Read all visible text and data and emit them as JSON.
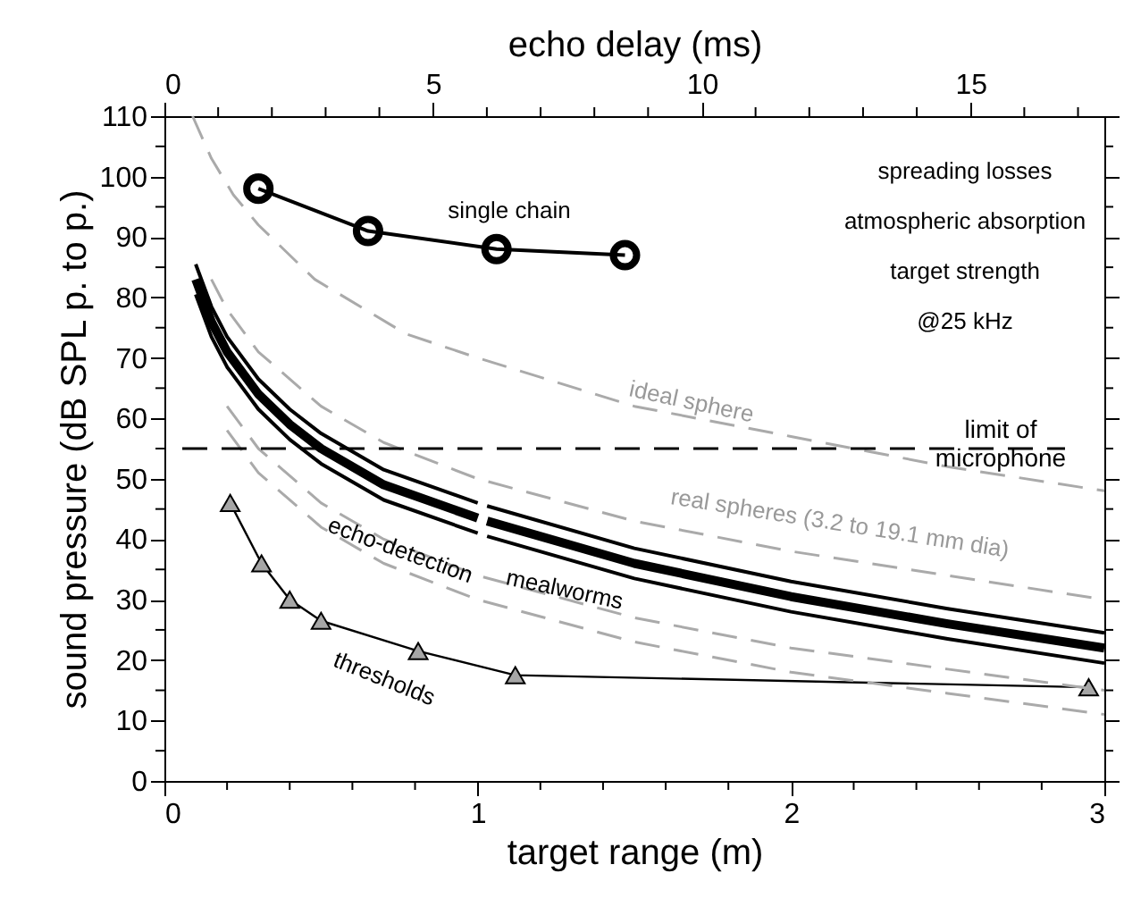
{
  "chart_data": {
    "type": "line",
    "xlabel": "target range (m)",
    "ylabel": "sound pressure (dB SPL p. to p.)",
    "x2label": "echo delay (ms)",
    "xlim": [
      0,
      3
    ],
    "ylim": [
      0,
      110
    ],
    "x2lim": [
      0,
      17.49
    ],
    "xticks": [
      0,
      {
        "value": 0.2,
        "label": null
      },
      {
        "value": 0.4,
        "label": null
      },
      {
        "value": 0.6,
        "label": null
      },
      {
        "value": 0.8,
        "label": null
      },
      1,
      {
        "value": 1.2,
        "label": null
      },
      {
        "value": 1.4,
        "label": null
      },
      {
        "value": 1.6,
        "label": null
      },
      {
        "value": 1.8,
        "label": null
      },
      2,
      {
        "value": 2.2,
        "label": null
      },
      {
        "value": 2.4,
        "label": null
      },
      {
        "value": 2.6,
        "label": null
      },
      {
        "value": 2.8,
        "label": null
      },
      3
    ],
    "yticks": [
      0,
      {
        "value": 5,
        "label": null
      },
      10,
      {
        "value": 15,
        "label": null
      },
      20,
      {
        "value": 25,
        "label": null
      },
      30,
      {
        "value": 35,
        "label": null
      },
      40,
      {
        "value": 45,
        "label": null
      },
      50,
      {
        "value": 55,
        "label": null
      },
      60,
      {
        "value": 65,
        "label": null
      },
      70,
      {
        "value": 75,
        "label": null
      },
      80,
      {
        "value": 85,
        "label": null
      },
      90,
      {
        "value": 95,
        "label": null
      },
      100,
      {
        "value": 105,
        "label": null
      },
      110
    ],
    "x2ticks": [
      0,
      {
        "value": 1,
        "label": null
      },
      {
        "value": 2,
        "label": null
      },
      {
        "value": 3,
        "label": null
      },
      {
        "value": 4,
        "label": null
      },
      5,
      {
        "value": 6,
        "label": null
      },
      {
        "value": 7,
        "label": null
      },
      {
        "value": 8,
        "label": null
      },
      {
        "value": 9,
        "label": null
      },
      10,
      {
        "value": 11,
        "label": null
      },
      {
        "value": 12,
        "label": null
      },
      {
        "value": 13,
        "label": null
      },
      {
        "value": 14,
        "label": null
      },
      15,
      {
        "value": 16,
        "label": null
      },
      {
        "value": 17,
        "label": null
      }
    ],
    "grid": false,
    "series": [
      {
        "color": "#000000",
        "marker": "circle",
        "line_style": "solid",
        "x": [
          0.3,
          0.65,
          1.06,
          1.47
        ],
        "values": [
          98,
          91,
          88,
          87
        ]
      },
      {
        "color": "#000000",
        "marker": "triangle",
        "line_style": "solid",
        "x": [
          0.21,
          0.31,
          0.4,
          0.5,
          0.81,
          1.12,
          2.95
        ],
        "values": [
          46,
          36,
          30,
          26.5,
          21.5,
          17.5,
          15.5
        ]
      },
      {
        "color": "#000000",
        "marker": "none",
        "line_style": "solid",
        "x": [
          0.1,
          0.15,
          0.2,
          0.3,
          0.4,
          0.5,
          0.7,
          1.0,
          1.015,
          1.03,
          1.5,
          2,
          2.5,
          3
        ],
        "values": [
          85.5,
          78.5,
          73.5,
          66.5,
          61.5,
          57.5,
          51.5,
          46,
          null,
          45.5,
          38.5,
          33,
          28.5,
          24.5
        ]
      },
      {
        "color": "#000000",
        "marker": "none",
        "line_style": "solid",
        "x": [
          0.1,
          0.15,
          0.2,
          0.3,
          0.4,
          0.5,
          0.7,
          1.0,
          1.015,
          1.03,
          1.5,
          2,
          2.5,
          3
        ],
        "values": [
          83,
          76,
          71,
          64,
          59,
          55,
          49,
          43.5,
          null,
          43,
          36,
          30.5,
          26,
          22
        ]
      },
      {
        "color": "#000000",
        "marker": "none",
        "line_style": "solid",
        "x": [
          0.1,
          0.15,
          0.2,
          0.3,
          0.4,
          0.5,
          0.7,
          1.0,
          1.015,
          1.03,
          1.5,
          2,
          2.5,
          3
        ],
        "values": [
          80.5,
          73.5,
          68.5,
          61.5,
          56.5,
          52.5,
          46.5,
          41,
          null,
          40.5,
          33.5,
          28,
          23.5,
          19.5
        ]
      },
      {
        "color": "#aaaaaa",
        "marker": "none",
        "line_style": "dashed",
        "x": [
          0.09,
          0.15,
          0.22,
          0.3,
          0.48,
          0.77,
          1.0,
          1.5,
          2,
          2.5,
          3
        ],
        "values": [
          110,
          103,
          97,
          92,
          83,
          74,
          70,
          62,
          57,
          52,
          48
        ]
      },
      {
        "color": "#aaaaaa",
        "marker": "none",
        "line_style": "dashed",
        "x": [
          0.15,
          0.2,
          0.3,
          0.5,
          0.7,
          1.0,
          1.5,
          2,
          2.5,
          3
        ],
        "values": [
          83,
          78,
          71,
          62,
          56,
          50,
          43,
          38,
          34,
          30
        ]
      },
      {
        "color": "#aaaaaa",
        "marker": "none",
        "line_style": "dashed",
        "x": [
          0.2,
          0.3,
          0.5,
          0.7,
          1.0,
          1.5,
          2,
          2.5,
          3
        ],
        "values": [
          62,
          55,
          46,
          40,
          34,
          27,
          22,
          18.5,
          15
        ]
      },
      {
        "color": "#aaaaaa",
        "marker": "none",
        "line_style": "dashed",
        "x": [
          0.2,
          0.3,
          0.5,
          0.7,
          1.0,
          1.5,
          2,
          2.5,
          3
        ],
        "values": [
          58,
          51,
          42,
          36,
          30,
          23,
          18,
          14.5,
          11
        ]
      }
    ],
    "ref_lines": [
      {
        "axis": "y",
        "value": 55,
        "label": "limit of\nmicrophone",
        "color": "#000000",
        "line_style": "dashed"
      }
    ],
    "annotations": [
      "single chain",
      "spreading losses",
      "atmospheric absorption",
      "target strength",
      "@25 kHz",
      "ideal sphere",
      "real spheres (3.2 to 19.1 mm dia)",
      "mealworms",
      "echo-detection",
      "thresholds"
    ]
  }
}
